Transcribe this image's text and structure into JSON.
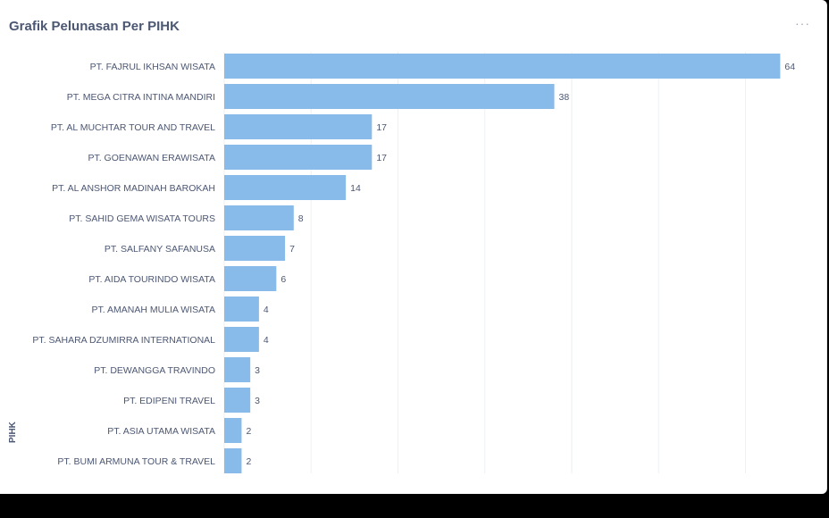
{
  "title": "Grafik Pelunasan Per PIHK",
  "menu_label": "···",
  "chart_data": {
    "type": "bar",
    "orientation": "horizontal",
    "title": "Grafik Pelunasan Per PIHK",
    "xlabel": "",
    "ylabel": "PIHK",
    "xlim": [
      0,
      69
    ],
    "grid": true,
    "bar_color": "#88bbea",
    "categories": [
      "PT. FAJRUL IKHSAN WISATA",
      "PT. MEGA CITRA INTINA MANDIRI",
      "PT. AL MUCHTAR TOUR AND TRAVEL",
      "PT. GOENAWAN ERAWISATA",
      "PT. AL ANSHOR MADINAH BAROKAH",
      "PT. SAHID GEMA WISATA TOURS",
      "PT. SALFANY SAFANUSA",
      "PT. AIDA TOURINDO WISATA",
      "PT. AMANAH MULIA WISATA",
      "PT. SAHARA DZUMIRRA INTERNATIONAL",
      "PT. DEWANGGA TRAVINDO",
      "PT. EDIPENI TRAVEL",
      "PT. ASIA UTAMA WISATA",
      "PT. BUMI ARMUNA TOUR & TRAVEL"
    ],
    "values": [
      64,
      38,
      17,
      17,
      14,
      8,
      7,
      6,
      4,
      4,
      3,
      3,
      2,
      2
    ]
  }
}
